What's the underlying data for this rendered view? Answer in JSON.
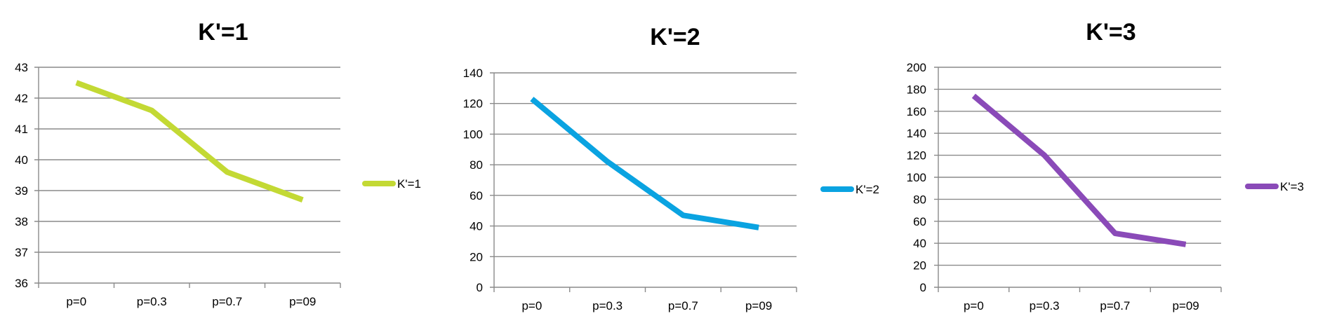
{
  "chart_data": [
    {
      "type": "line",
      "title": "K'=1",
      "categories": [
        "p=0",
        "p=0.3",
        "p=0.7",
        "p=09"
      ],
      "series": [
        {
          "name": "K'=1",
          "values": [
            42.5,
            41.6,
            39.6,
            38.7
          ],
          "color": "#c3d934"
        }
      ],
      "ylim": [
        36,
        43
      ],
      "yticks": [
        36,
        37,
        38,
        39,
        40,
        41,
        42,
        43
      ],
      "grid": true,
      "legend": "right"
    },
    {
      "type": "line",
      "title": "K'=2",
      "categories": [
        "p=0",
        "p=0.3",
        "p=0.7",
        "p=09"
      ],
      "series": [
        {
          "name": "K'=2",
          "values": [
            123,
            82,
            47,
            39
          ],
          "color": "#0aa3e1"
        }
      ],
      "ylim": [
        0,
        140
      ],
      "yticks": [
        0,
        20,
        40,
        60,
        80,
        100,
        120,
        140
      ],
      "grid": true,
      "legend": "right"
    },
    {
      "type": "line",
      "title": "K'=3",
      "categories": [
        "p=0",
        "p=0.3",
        "p=0.7",
        "p=09"
      ],
      "series": [
        {
          "name": "K'=3",
          "values": [
            174,
            120,
            49,
            39
          ],
          "color": "#8a4ab8"
        }
      ],
      "ylim": [
        0,
        200
      ],
      "yticks": [
        0,
        20,
        40,
        60,
        80,
        100,
        120,
        140,
        160,
        180,
        200
      ],
      "grid": true,
      "legend": "right"
    }
  ]
}
